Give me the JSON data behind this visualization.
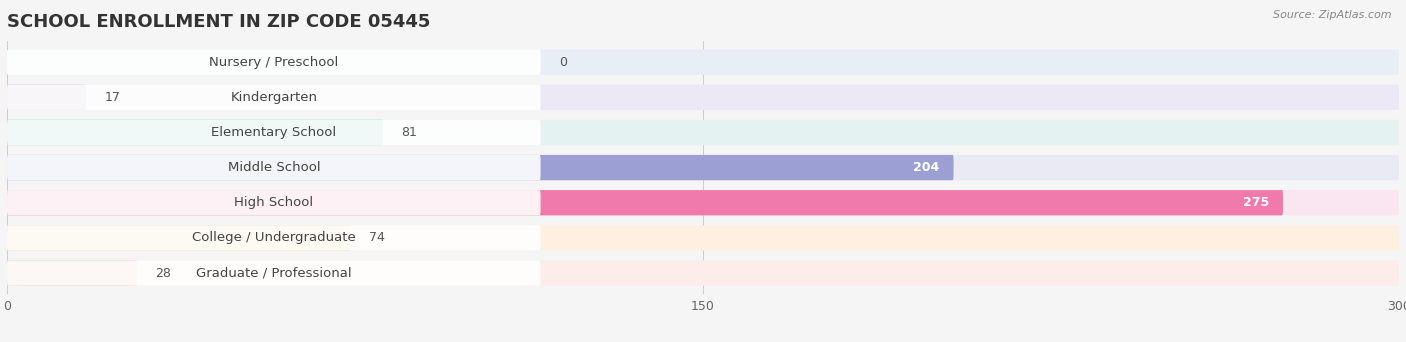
{
  "title": "SCHOOL ENROLLMENT IN ZIP CODE 05445",
  "source": "Source: ZipAtlas.com",
  "categories": [
    "Nursery / Preschool",
    "Kindergarten",
    "Elementary School",
    "Middle School",
    "High School",
    "College / Undergraduate",
    "Graduate / Professional"
  ],
  "values": [
    0,
    17,
    81,
    204,
    275,
    74,
    28
  ],
  "bar_colors": [
    "#a8c4e0",
    "#c9aed6",
    "#6ecbbc",
    "#9b9fd4",
    "#f07aaa",
    "#f5c98a",
    "#f0b0a8"
  ],
  "bg_colors": [
    "#e8eef5",
    "#ede8f5",
    "#e4f3f1",
    "#eaeaf5",
    "#fae6f0",
    "#fdf0e0",
    "#fcecea"
  ],
  "xlim": [
    0,
    300
  ],
  "xticks": [
    0,
    150,
    300
  ],
  "title_fontsize": 13,
  "label_fontsize": 9.5,
  "value_fontsize": 9,
  "background_color": "#f5f5f5"
}
